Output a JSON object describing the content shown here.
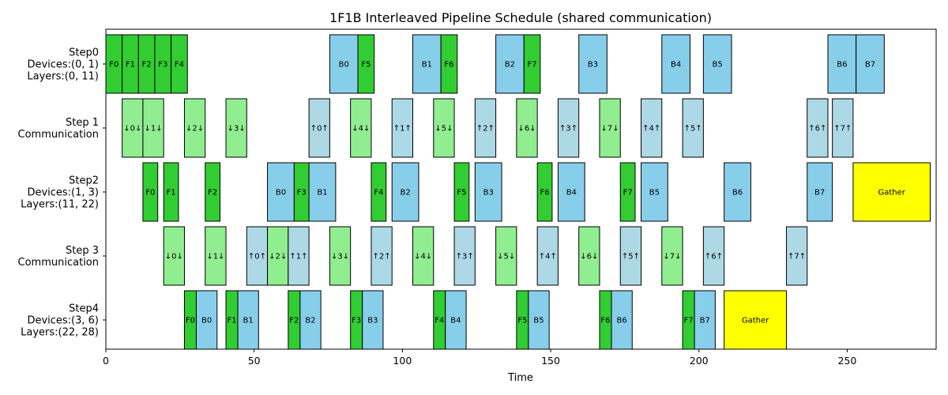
{
  "chart_data": {
    "type": "gantt",
    "title": "1F1B Interleaved Pipeline Schedule (shared communication)",
    "xlabel": "Time",
    "xlim": [
      0,
      280
    ],
    "xticks": [
      0,
      50,
      100,
      150,
      200,
      250
    ],
    "colors": {
      "forward": "#32cd32",
      "backward": "#87ceeb",
      "comm_forward": "#90ee90",
      "comm_backward": "#add8e6",
      "gather": "#ffff00"
    },
    "rows": [
      {
        "label": [
          "Step0",
          "Devices:(0, 1)",
          "Layers:(0, 11)"
        ],
        "tasks": [
          {
            "label": "F0",
            "start": 0,
            "end": 5.5,
            "kind": "forward"
          },
          {
            "label": "F1",
            "start": 5.5,
            "end": 11,
            "kind": "forward"
          },
          {
            "label": "F2",
            "start": 11,
            "end": 16.5,
            "kind": "forward"
          },
          {
            "label": "F3",
            "start": 16.5,
            "end": 22,
            "kind": "forward"
          },
          {
            "label": "F4",
            "start": 22,
            "end": 27.5,
            "kind": "forward"
          },
          {
            "label": "B0",
            "start": 75.5,
            "end": 85,
            "kind": "backward"
          },
          {
            "label": "F5",
            "start": 85,
            "end": 90.5,
            "kind": "forward"
          },
          {
            "label": "B1",
            "start": 103.5,
            "end": 113,
            "kind": "backward"
          },
          {
            "label": "F6",
            "start": 113,
            "end": 118.5,
            "kind": "forward"
          },
          {
            "label": "B2",
            "start": 131.5,
            "end": 141,
            "kind": "backward"
          },
          {
            "label": "F7",
            "start": 141,
            "end": 146.5,
            "kind": "forward"
          },
          {
            "label": "B3",
            "start": 159.5,
            "end": 169,
            "kind": "backward"
          },
          {
            "label": "B4",
            "start": 187.5,
            "end": 197,
            "kind": "backward"
          },
          {
            "label": "B5",
            "start": 201.5,
            "end": 211,
            "kind": "backward"
          },
          {
            "label": "B6",
            "start": 243.5,
            "end": 253,
            "kind": "backward"
          },
          {
            "label": "B7",
            "start": 253,
            "end": 262.5,
            "kind": "backward"
          }
        ]
      },
      {
        "label": [
          "Step 1",
          "Communication"
        ],
        "tasks": [
          {
            "label": "↓0↓",
            "start": 5.5,
            "end": 12.5,
            "kind": "comm_forward"
          },
          {
            "label": "↓1↓",
            "start": 12.5,
            "end": 19.5,
            "kind": "comm_forward"
          },
          {
            "label": "↓2↓",
            "start": 26.5,
            "end": 33.5,
            "kind": "comm_forward"
          },
          {
            "label": "↓3↓",
            "start": 40.5,
            "end": 47.5,
            "kind": "comm_forward"
          },
          {
            "label": "↑0↑",
            "start": 68.5,
            "end": 75.5,
            "kind": "comm_backward"
          },
          {
            "label": "↓4↓",
            "start": 82.5,
            "end": 89.5,
            "kind": "comm_forward"
          },
          {
            "label": "↑1↑",
            "start": 96.5,
            "end": 103.5,
            "kind": "comm_backward"
          },
          {
            "label": "↓5↓",
            "start": 110.5,
            "end": 117.5,
            "kind": "comm_forward"
          },
          {
            "label": "↑2↑",
            "start": 124.5,
            "end": 131.5,
            "kind": "comm_backward"
          },
          {
            "label": "↓6↓",
            "start": 138.5,
            "end": 145.5,
            "kind": "comm_forward"
          },
          {
            "label": "↑3↑",
            "start": 152.5,
            "end": 159.5,
            "kind": "comm_backward"
          },
          {
            "label": "↓7↓",
            "start": 166.5,
            "end": 173.5,
            "kind": "comm_forward"
          },
          {
            "label": "↑4↑",
            "start": 180.5,
            "end": 187.5,
            "kind": "comm_backward"
          },
          {
            "label": "↑5↑",
            "start": 194.5,
            "end": 201.5,
            "kind": "comm_backward"
          },
          {
            "label": "↑6↑",
            "start": 236.5,
            "end": 243.5,
            "kind": "comm_backward"
          },
          {
            "label": "↑7↑",
            "start": 245,
            "end": 252,
            "kind": "comm_backward"
          }
        ]
      },
      {
        "label": [
          "Step2",
          "Devices:(1, 3)",
          "Layers:(11, 22)"
        ],
        "tasks": [
          {
            "label": "F0",
            "start": 12.5,
            "end": 17.5,
            "kind": "forward"
          },
          {
            "label": "F1",
            "start": 19.5,
            "end": 24.5,
            "kind": "forward"
          },
          {
            "label": "F2",
            "start": 33.5,
            "end": 38.5,
            "kind": "forward"
          },
          {
            "label": "B0",
            "start": 54.5,
            "end": 63.5,
            "kind": "backward"
          },
          {
            "label": "F3",
            "start": 63.5,
            "end": 68.5,
            "kind": "forward"
          },
          {
            "label": "B1",
            "start": 68.5,
            "end": 77.5,
            "kind": "backward"
          },
          {
            "label": "F4",
            "start": 89.5,
            "end": 94.5,
            "kind": "forward"
          },
          {
            "label": "B2",
            "start": 96.5,
            "end": 105.5,
            "kind": "backward"
          },
          {
            "label": "F5",
            "start": 117.5,
            "end": 122.5,
            "kind": "forward"
          },
          {
            "label": "B3",
            "start": 124.5,
            "end": 133.5,
            "kind": "backward"
          },
          {
            "label": "F6",
            "start": 145.5,
            "end": 150.5,
            "kind": "forward"
          },
          {
            "label": "B4",
            "start": 152.5,
            "end": 161.5,
            "kind": "backward"
          },
          {
            "label": "F7",
            "start": 173.5,
            "end": 178.5,
            "kind": "forward"
          },
          {
            "label": "B5",
            "start": 180.5,
            "end": 189.5,
            "kind": "backward"
          },
          {
            "label": "B6",
            "start": 208.5,
            "end": 217.5,
            "kind": "backward"
          },
          {
            "label": "B7",
            "start": 236.5,
            "end": 245,
            "kind": "backward"
          },
          {
            "label": "Gather",
            "start": 252,
            "end": 278,
            "kind": "gather"
          }
        ]
      },
      {
        "label": [
          "Step 3",
          "Communication"
        ],
        "tasks": [
          {
            "label": "↓0↓",
            "start": 19.5,
            "end": 26.5,
            "kind": "comm_forward"
          },
          {
            "label": "↓1↓",
            "start": 33.5,
            "end": 40.5,
            "kind": "comm_forward"
          },
          {
            "label": "↑0↑",
            "start": 47.5,
            "end": 54.5,
            "kind": "comm_backward"
          },
          {
            "label": "↓2↓",
            "start": 54.5,
            "end": 61.5,
            "kind": "comm_forward"
          },
          {
            "label": "↑1↑",
            "start": 61.5,
            "end": 68.5,
            "kind": "comm_backward"
          },
          {
            "label": "↓3↓",
            "start": 75.5,
            "end": 82.5,
            "kind": "comm_forward"
          },
          {
            "label": "↑2↑",
            "start": 89.5,
            "end": 96.5,
            "kind": "comm_backward"
          },
          {
            "label": "↓4↓",
            "start": 103.5,
            "end": 110.5,
            "kind": "comm_forward"
          },
          {
            "label": "↑3↑",
            "start": 117.5,
            "end": 124.5,
            "kind": "comm_backward"
          },
          {
            "label": "↓5↓",
            "start": 131.5,
            "end": 138.5,
            "kind": "comm_forward"
          },
          {
            "label": "↑4↑",
            "start": 145.5,
            "end": 152.5,
            "kind": "comm_backward"
          },
          {
            "label": "↓6↓",
            "start": 159.5,
            "end": 166.5,
            "kind": "comm_forward"
          },
          {
            "label": "↑5↑",
            "start": 173.5,
            "end": 180.5,
            "kind": "comm_backward"
          },
          {
            "label": "↓7↓",
            "start": 187.5,
            "end": 194.5,
            "kind": "comm_forward"
          },
          {
            "label": "↑6↑",
            "start": 201.5,
            "end": 208.5,
            "kind": "comm_backward"
          },
          {
            "label": "↑7↑",
            "start": 229.5,
            "end": 236.5,
            "kind": "comm_backward"
          }
        ]
      },
      {
        "label": [
          "Step4",
          "Devices:(3, 6)",
          "Layers:(22, 28)"
        ],
        "tasks": [
          {
            "label": "F0",
            "start": 26.5,
            "end": 30.5,
            "kind": "forward"
          },
          {
            "label": "B0",
            "start": 30.5,
            "end": 37.5,
            "kind": "backward"
          },
          {
            "label": "F1",
            "start": 40.5,
            "end": 44.5,
            "kind": "forward"
          },
          {
            "label": "B1",
            "start": 44.5,
            "end": 51.5,
            "kind": "backward"
          },
          {
            "label": "F2",
            "start": 61.5,
            "end": 65.5,
            "kind": "forward"
          },
          {
            "label": "B2",
            "start": 65.5,
            "end": 72.5,
            "kind": "backward"
          },
          {
            "label": "F3",
            "start": 82.5,
            "end": 86.5,
            "kind": "forward"
          },
          {
            "label": "B3",
            "start": 86.5,
            "end": 93.5,
            "kind": "backward"
          },
          {
            "label": "F4",
            "start": 110.5,
            "end": 114.5,
            "kind": "forward"
          },
          {
            "label": "B4",
            "start": 114.5,
            "end": 121.5,
            "kind": "backward"
          },
          {
            "label": "F5",
            "start": 138.5,
            "end": 142.5,
            "kind": "forward"
          },
          {
            "label": "B5",
            "start": 142.5,
            "end": 149.5,
            "kind": "backward"
          },
          {
            "label": "F6",
            "start": 166.5,
            "end": 170.5,
            "kind": "forward"
          },
          {
            "label": "B6",
            "start": 170.5,
            "end": 177.5,
            "kind": "backward"
          },
          {
            "label": "F7",
            "start": 194.5,
            "end": 198.5,
            "kind": "forward"
          },
          {
            "label": "B7",
            "start": 198.5,
            "end": 205.5,
            "kind": "backward"
          },
          {
            "label": "Gather",
            "start": 208.5,
            "end": 229.5,
            "kind": "gather"
          }
        ]
      }
    ]
  }
}
